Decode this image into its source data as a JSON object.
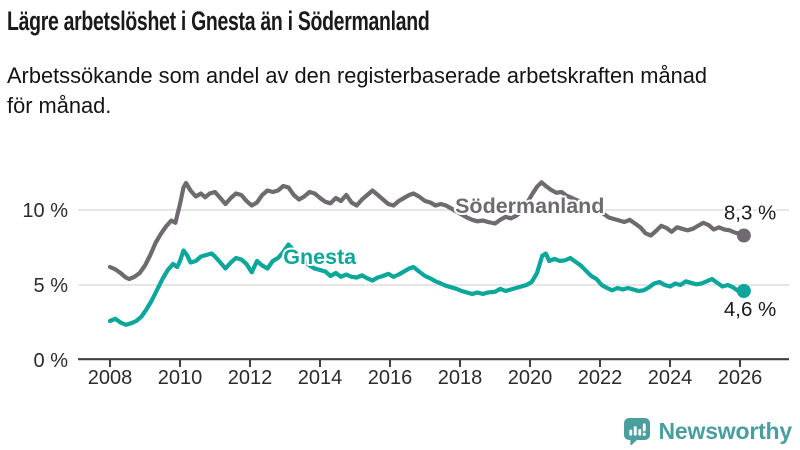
{
  "header": {
    "title": "Lägre arbetslöshet i Gnesta än i Södermanland",
    "subtitle": "Arbetssökande som andel av den registerbaserade arbetskraften månad\nför månad."
  },
  "chart_data": {
    "type": "line",
    "title": "Lägre arbetslöshet i Gnesta än i Södermanland",
    "xlabel": "",
    "ylabel": "",
    "xlim": [
      2007.1,
      2027.4
    ],
    "ylim": [
      0,
      12.7
    ],
    "grid": "horizontal",
    "grid_color": "#dedede",
    "axis_color": "#3f3f3f",
    "tick_label_color": "#2b2b2b",
    "x_ticks": [
      2008,
      2010,
      2012,
      2014,
      2016,
      2018,
      2020,
      2022,
      2024,
      2026
    ],
    "y_ticks": [
      {
        "value": 0,
        "label": "0 %"
      },
      {
        "value": 5,
        "label": "5 %"
      },
      {
        "value": 10,
        "label": "10 %"
      }
    ],
    "legend_position": "inline-labels-on-lines",
    "series": [
      {
        "name": "Södermanland",
        "color": "#6e6a70",
        "end_label": "8,3 %",
        "end_value": 8.3,
        "end_label_position": "above",
        "label_at": {
          "year": 2017.86,
          "value": 9.8
        },
        "points": [
          [
            2008.0,
            6.2
          ],
          [
            2008.15,
            6.05
          ],
          [
            2008.3,
            5.8
          ],
          [
            2008.45,
            5.5
          ],
          [
            2008.55,
            5.4
          ],
          [
            2008.7,
            5.55
          ],
          [
            2008.85,
            5.8
          ],
          [
            2009.0,
            6.3
          ],
          [
            2009.15,
            7.0
          ],
          [
            2009.3,
            7.8
          ],
          [
            2009.45,
            8.4
          ],
          [
            2009.6,
            8.9
          ],
          [
            2009.75,
            9.3
          ],
          [
            2009.87,
            9.15
          ],
          [
            2010.0,
            10.4
          ],
          [
            2010.1,
            11.5
          ],
          [
            2010.17,
            11.8
          ],
          [
            2010.3,
            11.3
          ],
          [
            2010.45,
            10.9
          ],
          [
            2010.6,
            11.1
          ],
          [
            2010.72,
            10.85
          ],
          [
            2010.85,
            11.1
          ],
          [
            2011.0,
            11.2
          ],
          [
            2011.15,
            10.8
          ],
          [
            2011.3,
            10.4
          ],
          [
            2011.45,
            10.8
          ],
          [
            2011.6,
            11.1
          ],
          [
            2011.75,
            11.0
          ],
          [
            2011.9,
            10.6
          ],
          [
            2012.05,
            10.3
          ],
          [
            2012.2,
            10.5
          ],
          [
            2012.35,
            11.0
          ],
          [
            2012.5,
            11.3
          ],
          [
            2012.65,
            11.2
          ],
          [
            2012.8,
            11.3
          ],
          [
            2012.95,
            11.6
          ],
          [
            2013.1,
            11.5
          ],
          [
            2013.25,
            11.0
          ],
          [
            2013.4,
            10.7
          ],
          [
            2013.55,
            10.9
          ],
          [
            2013.7,
            11.2
          ],
          [
            2013.85,
            11.1
          ],
          [
            2014.0,
            10.8
          ],
          [
            2014.15,
            10.55
          ],
          [
            2014.3,
            10.45
          ],
          [
            2014.45,
            10.8
          ],
          [
            2014.6,
            10.6
          ],
          [
            2014.75,
            11.0
          ],
          [
            2014.9,
            10.5
          ],
          [
            2015.05,
            10.3
          ],
          [
            2015.2,
            10.7
          ],
          [
            2015.35,
            11.0
          ],
          [
            2015.5,
            11.3
          ],
          [
            2015.65,
            11.0
          ],
          [
            2015.8,
            10.7
          ],
          [
            2015.95,
            10.4
          ],
          [
            2016.1,
            10.3
          ],
          [
            2016.25,
            10.6
          ],
          [
            2016.4,
            10.8
          ],
          [
            2016.55,
            11.0
          ],
          [
            2016.67,
            11.1
          ],
          [
            2016.83,
            10.9
          ],
          [
            2017.0,
            10.6
          ],
          [
            2017.15,
            10.5
          ],
          [
            2017.3,
            10.3
          ],
          [
            2017.45,
            10.4
          ],
          [
            2017.6,
            10.3
          ],
          [
            2017.75,
            10.1
          ],
          [
            2017.9,
            9.9
          ],
          [
            2018.05,
            9.7
          ],
          [
            2018.2,
            9.5
          ],
          [
            2018.35,
            9.35
          ],
          [
            2018.5,
            9.25
          ],
          [
            2018.65,
            9.3
          ],
          [
            2018.8,
            9.2
          ],
          [
            2019.0,
            9.1
          ],
          [
            2019.15,
            9.35
          ],
          [
            2019.3,
            9.55
          ],
          [
            2019.45,
            9.45
          ],
          [
            2019.6,
            9.6
          ],
          [
            2019.75,
            9.9
          ],
          [
            2019.9,
            10.4
          ],
          [
            2020.05,
            11.0
          ],
          [
            2020.2,
            11.55
          ],
          [
            2020.33,
            11.85
          ],
          [
            2020.45,
            11.6
          ],
          [
            2020.6,
            11.35
          ],
          [
            2020.75,
            11.15
          ],
          [
            2020.9,
            11.2
          ],
          [
            2021.05,
            10.95
          ],
          [
            2021.2,
            10.8
          ],
          [
            2021.35,
            10.65
          ],
          [
            2021.5,
            10.5
          ],
          [
            2021.65,
            10.3
          ],
          [
            2021.8,
            10.1
          ],
          [
            2021.95,
            9.95
          ],
          [
            2022.1,
            9.75
          ],
          [
            2022.25,
            9.5
          ],
          [
            2022.4,
            9.4
          ],
          [
            2022.55,
            9.3
          ],
          [
            2022.7,
            9.2
          ],
          [
            2022.85,
            9.35
          ],
          [
            2023.0,
            9.1
          ],
          [
            2023.15,
            8.85
          ],
          [
            2023.3,
            8.45
          ],
          [
            2023.45,
            8.3
          ],
          [
            2023.6,
            8.6
          ],
          [
            2023.75,
            8.95
          ],
          [
            2023.9,
            8.8
          ],
          [
            2024.05,
            8.55
          ],
          [
            2024.2,
            8.85
          ],
          [
            2024.35,
            8.75
          ],
          [
            2024.5,
            8.65
          ],
          [
            2024.65,
            8.75
          ],
          [
            2024.8,
            8.95
          ],
          [
            2024.95,
            9.15
          ],
          [
            2025.1,
            9.0
          ],
          [
            2025.25,
            8.7
          ],
          [
            2025.4,
            8.85
          ],
          [
            2025.55,
            8.7
          ],
          [
            2025.7,
            8.65
          ],
          [
            2025.85,
            8.5
          ],
          [
            2026.0,
            8.4
          ],
          [
            2026.11,
            8.3
          ]
        ]
      },
      {
        "name": "Gnesta",
        "color": "#0aa79a",
        "end_label": "4,6 %",
        "end_value": 4.6,
        "end_label_position": "below",
        "label_at": {
          "year": 2012.95,
          "value": 6.4
        },
        "points": [
          [
            2008.0,
            2.6
          ],
          [
            2008.15,
            2.75
          ],
          [
            2008.3,
            2.5
          ],
          [
            2008.45,
            2.35
          ],
          [
            2008.6,
            2.45
          ],
          [
            2008.75,
            2.6
          ],
          [
            2008.9,
            2.9
          ],
          [
            2009.05,
            3.4
          ],
          [
            2009.2,
            4.0
          ],
          [
            2009.35,
            4.7
          ],
          [
            2009.5,
            5.4
          ],
          [
            2009.65,
            6.0
          ],
          [
            2009.8,
            6.4
          ],
          [
            2009.92,
            6.2
          ],
          [
            2010.0,
            6.6
          ],
          [
            2010.1,
            7.3
          ],
          [
            2010.2,
            7.0
          ],
          [
            2010.3,
            6.5
          ],
          [
            2010.45,
            6.6
          ],
          [
            2010.6,
            6.9
          ],
          [
            2010.75,
            7.0
          ],
          [
            2010.9,
            7.1
          ],
          [
            2011.0,
            6.9
          ],
          [
            2011.15,
            6.5
          ],
          [
            2011.3,
            6.1
          ],
          [
            2011.45,
            6.5
          ],
          [
            2011.6,
            6.8
          ],
          [
            2011.75,
            6.7
          ],
          [
            2011.9,
            6.4
          ],
          [
            2012.05,
            5.85
          ],
          [
            2012.2,
            6.6
          ],
          [
            2012.35,
            6.3
          ],
          [
            2012.5,
            6.1
          ],
          [
            2012.65,
            6.6
          ],
          [
            2012.8,
            6.8
          ],
          [
            2012.95,
            7.2
          ],
          [
            2013.1,
            7.7
          ],
          [
            2013.25,
            7.3
          ],
          [
            2013.4,
            7.0
          ],
          [
            2013.55,
            6.6
          ],
          [
            2013.7,
            6.3
          ],
          [
            2013.85,
            6.1
          ],
          [
            2014.0,
            6.0
          ],
          [
            2014.15,
            5.9
          ],
          [
            2014.3,
            5.6
          ],
          [
            2014.45,
            5.8
          ],
          [
            2014.6,
            5.55
          ],
          [
            2014.75,
            5.7
          ],
          [
            2014.9,
            5.55
          ],
          [
            2015.05,
            5.5
          ],
          [
            2015.2,
            5.65
          ],
          [
            2015.35,
            5.45
          ],
          [
            2015.5,
            5.3
          ],
          [
            2015.65,
            5.5
          ],
          [
            2015.8,
            5.6
          ],
          [
            2015.95,
            5.75
          ],
          [
            2016.1,
            5.55
          ],
          [
            2016.25,
            5.7
          ],
          [
            2016.4,
            5.9
          ],
          [
            2016.55,
            6.1
          ],
          [
            2016.67,
            6.2
          ],
          [
            2016.83,
            5.9
          ],
          [
            2017.0,
            5.6
          ],
          [
            2017.15,
            5.45
          ],
          [
            2017.3,
            5.25
          ],
          [
            2017.45,
            5.1
          ],
          [
            2017.6,
            4.95
          ],
          [
            2017.75,
            4.85
          ],
          [
            2017.9,
            4.75
          ],
          [
            2018.05,
            4.6
          ],
          [
            2018.2,
            4.5
          ],
          [
            2018.35,
            4.4
          ],
          [
            2018.5,
            4.5
          ],
          [
            2018.65,
            4.4
          ],
          [
            2018.8,
            4.5
          ],
          [
            2019.0,
            4.55
          ],
          [
            2019.15,
            4.75
          ],
          [
            2019.3,
            4.6
          ],
          [
            2019.45,
            4.7
          ],
          [
            2019.6,
            4.8
          ],
          [
            2019.75,
            4.9
          ],
          [
            2019.9,
            5.0
          ],
          [
            2020.05,
            5.2
          ],
          [
            2020.2,
            5.8
          ],
          [
            2020.35,
            6.95
          ],
          [
            2020.45,
            7.1
          ],
          [
            2020.55,
            6.6
          ],
          [
            2020.7,
            6.75
          ],
          [
            2020.85,
            6.6
          ],
          [
            2021.0,
            6.65
          ],
          [
            2021.15,
            6.8
          ],
          [
            2021.3,
            6.55
          ],
          [
            2021.45,
            6.3
          ],
          [
            2021.6,
            5.95
          ],
          [
            2021.75,
            5.6
          ],
          [
            2021.9,
            5.4
          ],
          [
            2022.05,
            5.0
          ],
          [
            2022.2,
            4.8
          ],
          [
            2022.35,
            4.65
          ],
          [
            2022.5,
            4.8
          ],
          [
            2022.65,
            4.7
          ],
          [
            2022.8,
            4.8
          ],
          [
            2022.95,
            4.7
          ],
          [
            2023.1,
            4.6
          ],
          [
            2023.25,
            4.65
          ],
          [
            2023.4,
            4.85
          ],
          [
            2023.55,
            5.1
          ],
          [
            2023.7,
            5.2
          ],
          [
            2023.85,
            5.0
          ],
          [
            2024.0,
            4.9
          ],
          [
            2024.15,
            5.1
          ],
          [
            2024.3,
            5.0
          ],
          [
            2024.45,
            5.25
          ],
          [
            2024.6,
            5.15
          ],
          [
            2024.75,
            5.05
          ],
          [
            2024.9,
            5.1
          ],
          [
            2025.05,
            5.25
          ],
          [
            2025.2,
            5.4
          ],
          [
            2025.35,
            5.15
          ],
          [
            2025.5,
            4.9
          ],
          [
            2025.65,
            5.0
          ],
          [
            2025.8,
            4.85
          ],
          [
            2025.95,
            4.6
          ],
          [
            2026.11,
            4.6
          ]
        ]
      }
    ]
  },
  "footer": {
    "brand": "Newsworthy",
    "brand_color": "#4a9e9e",
    "logo_icon": "newsworthy-bubble-bar-chart-icon"
  }
}
